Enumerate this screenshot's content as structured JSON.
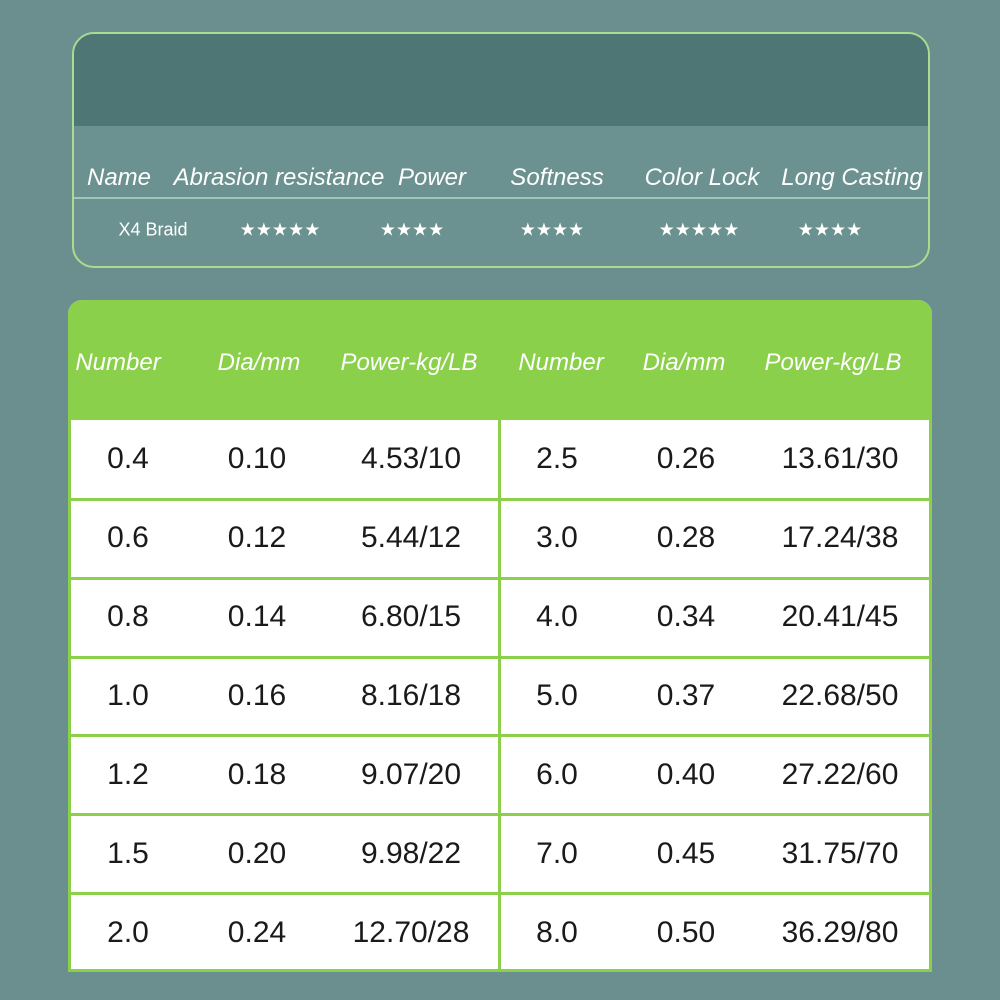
{
  "ratings": {
    "headers": [
      "Name",
      "Abrasion resistance",
      "Power",
      "Softness",
      "Color Lock",
      "Long Casting"
    ],
    "row": [
      "X4 Braid",
      "★★★★★",
      "★★★★",
      "★★★★",
      "★★★★★",
      "★★★★"
    ]
  },
  "table": {
    "headers": [
      "Number",
      "Dia/mm",
      "Power-kg/LB",
      "Number",
      "Dia/mm",
      "Power-kg/LB"
    ],
    "rows": [
      [
        "0.4",
        "0.10",
        "4.53/10",
        "2.5",
        "0.26",
        "13.61/30"
      ],
      [
        "0.6",
        "0.12",
        "5.44/12",
        "3.0",
        "0.28",
        "17.24/38"
      ],
      [
        "0.8",
        "0.14",
        "6.80/15",
        "4.0",
        "0.34",
        "20.41/45"
      ],
      [
        "1.0",
        "0.16",
        "8.16/18",
        "5.0",
        "0.37",
        "22.68/50"
      ],
      [
        "1.2",
        "0.18",
        "9.07/20",
        "6.0",
        "0.40",
        "27.22/60"
      ],
      [
        "1.5",
        "0.20",
        "9.98/22",
        "7.0",
        "0.45",
        "31.75/70"
      ],
      [
        "2.0",
        "0.24",
        "12.70/28",
        "8.0",
        "0.50",
        "36.29/80"
      ]
    ]
  }
}
